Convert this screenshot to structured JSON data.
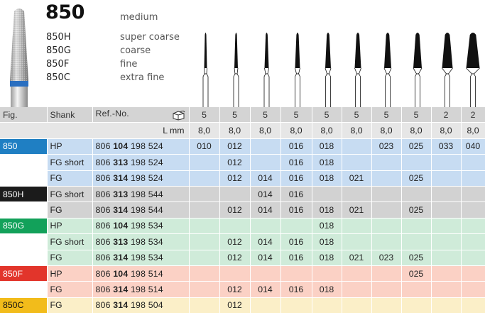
{
  "header": {
    "title": "850",
    "title_grade": "medium",
    "grades": [
      {
        "code": "850H",
        "label": "super coarse"
      },
      {
        "code": "850G",
        "label": "coarse"
      },
      {
        "code": "850F",
        "label": "fine"
      },
      {
        "code": "850C",
        "label": "extra fine"
      }
    ]
  },
  "table": {
    "col_fig": "Fig.",
    "col_shank": "Shank",
    "col_ref": "Ref.-No.",
    "packing_icon": "package-icon",
    "packing_counts": [
      "5",
      "5",
      "5",
      "5",
      "5",
      "5",
      "5",
      "5",
      "2",
      "2"
    ],
    "lmm_label": "L mm",
    "lengths": [
      "8,0",
      "8,0",
      "8,0",
      "8,0",
      "8,0",
      "8,0",
      "8,0",
      "8,0",
      "8,0",
      "8,0"
    ],
    "rows": [
      {
        "fig": "850",
        "group": "850",
        "shank": "HP",
        "ref_a": "806",
        "ref_b": "104",
        "ref_c": "198 524",
        "sizes": [
          "010",
          "012",
          "",
          "016",
          "018",
          "",
          "023",
          "025",
          "033",
          "040"
        ]
      },
      {
        "fig": "",
        "group": "850",
        "shank": "FG short",
        "ref_a": "806",
        "ref_b": "313",
        "ref_c": "198 524",
        "sizes": [
          "",
          "012",
          "",
          "016",
          "018",
          "",
          "",
          "",
          "",
          ""
        ]
      },
      {
        "fig": "",
        "group": "850",
        "shank": "FG",
        "ref_a": "806",
        "ref_b": "314",
        "ref_c": "198 524",
        "sizes": [
          "",
          "012",
          "014",
          "016",
          "018",
          "021",
          "",
          "025",
          "",
          ""
        ]
      },
      {
        "fig": "850H",
        "group": "850H",
        "shank": "FG short",
        "ref_a": "806",
        "ref_b": "313",
        "ref_c": "198 544",
        "sizes": [
          "",
          "",
          "014",
          "016",
          "",
          "",
          "",
          "",
          "",
          ""
        ]
      },
      {
        "fig": "",
        "group": "850H",
        "shank": "FG",
        "ref_a": "806",
        "ref_b": "314",
        "ref_c": "198 544",
        "sizes": [
          "",
          "012",
          "014",
          "016",
          "018",
          "021",
          "",
          "025",
          "",
          ""
        ]
      },
      {
        "fig": "850G",
        "group": "850G",
        "shank": "HP",
        "ref_a": "806",
        "ref_b": "104",
        "ref_c": "198 534",
        "sizes": [
          "",
          "",
          "",
          "",
          "018",
          "",
          "",
          "",
          "",
          ""
        ]
      },
      {
        "fig": "",
        "group": "850G",
        "shank": "FG short",
        "ref_a": "806",
        "ref_b": "313",
        "ref_c": "198 534",
        "sizes": [
          "",
          "012",
          "014",
          "016",
          "018",
          "",
          "",
          "",
          "",
          ""
        ]
      },
      {
        "fig": "",
        "group": "850G",
        "shank": "FG",
        "ref_a": "806",
        "ref_b": "314",
        "ref_c": "198 534",
        "sizes": [
          "",
          "012",
          "014",
          "016",
          "018",
          "021",
          "023",
          "025",
          "",
          ""
        ]
      },
      {
        "fig": "850F",
        "group": "850F",
        "shank": "HP",
        "ref_a": "806",
        "ref_b": "104",
        "ref_c": "198 514",
        "sizes": [
          "",
          "",
          "",
          "",
          "",
          "",
          "",
          "025",
          "",
          ""
        ]
      },
      {
        "fig": "",
        "group": "850F",
        "shank": "FG",
        "ref_a": "806",
        "ref_b": "314",
        "ref_c": "198 514",
        "sizes": [
          "",
          "012",
          "014",
          "016",
          "018",
          "",
          "",
          "",
          "",
          ""
        ]
      },
      {
        "fig": "850C",
        "group": "850C",
        "shank": "FG",
        "ref_a": "806",
        "ref_b": "314",
        "ref_c": "198 504",
        "sizes": [
          "",
          "012",
          "",
          "",
          "",
          "",
          "",
          "",
          "",
          ""
        ]
      }
    ]
  }
}
